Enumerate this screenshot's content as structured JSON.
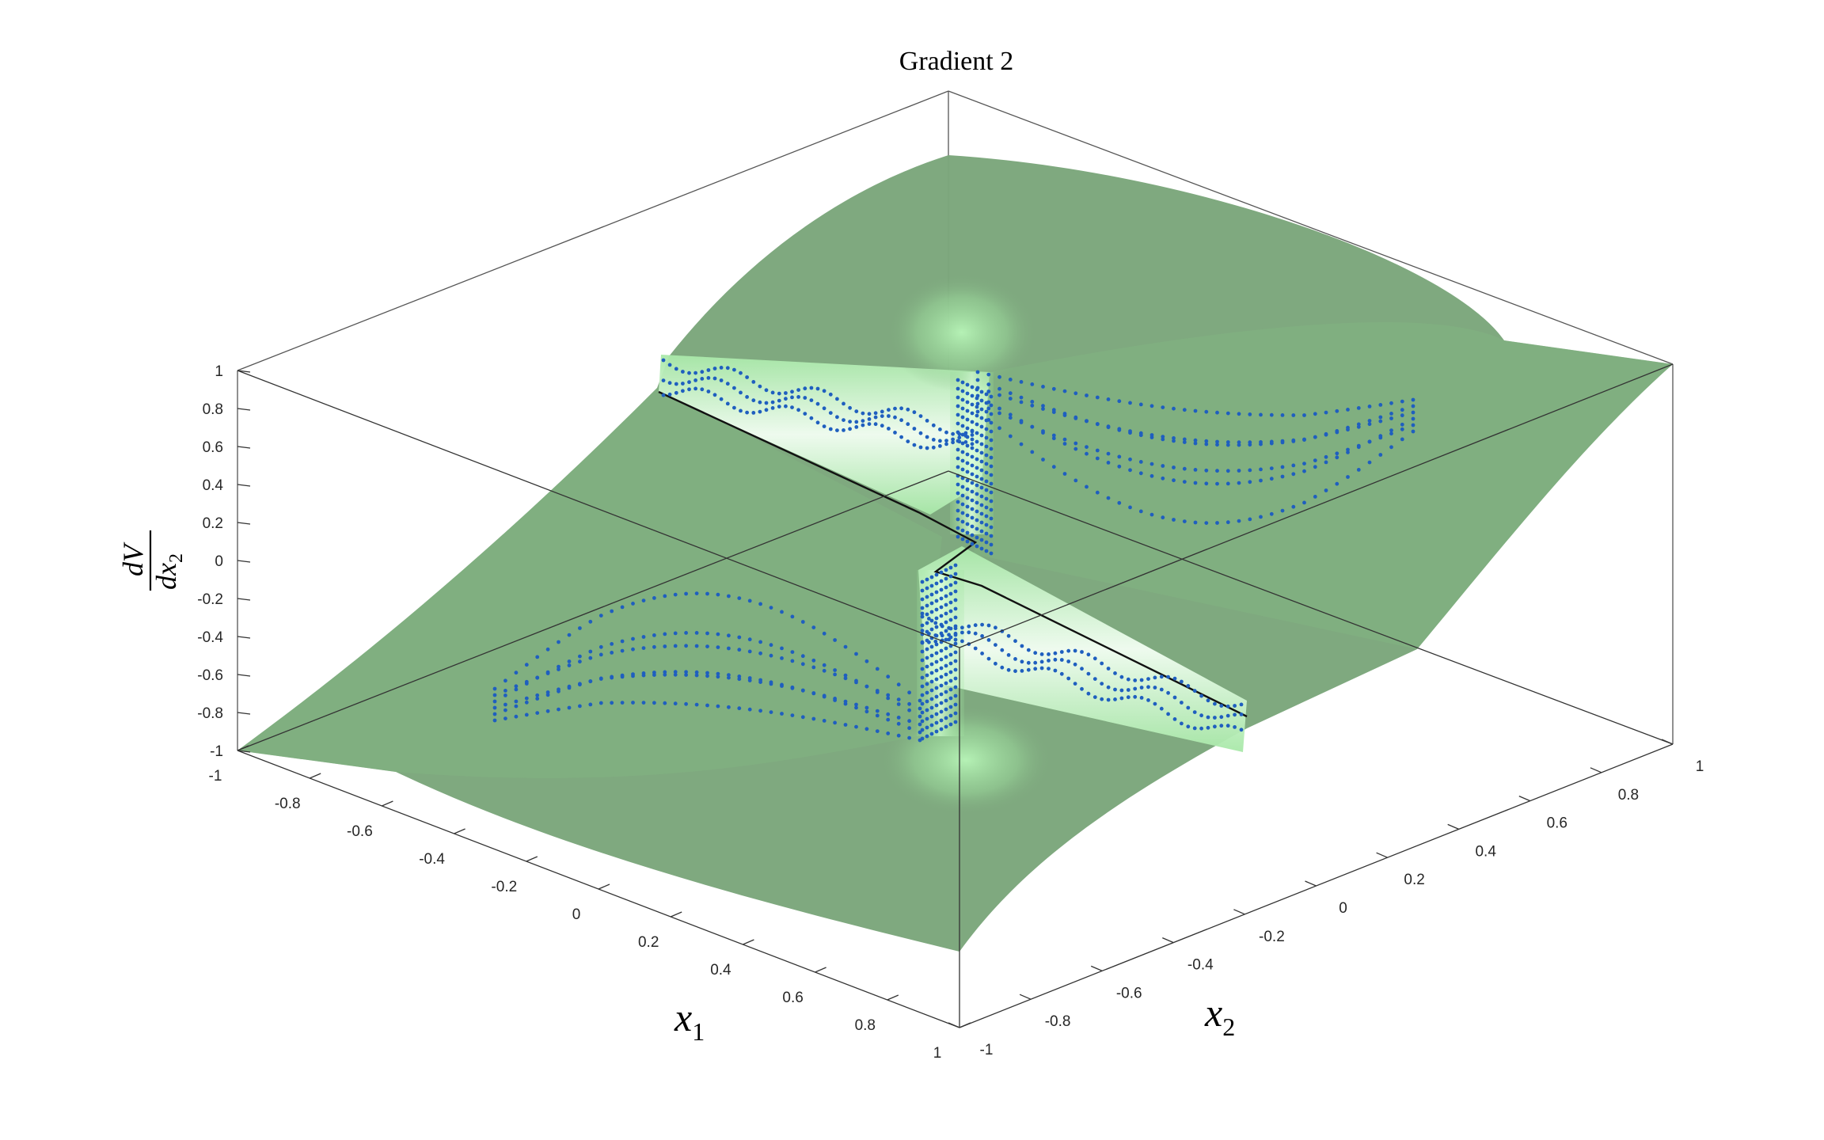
{
  "chart_data": {
    "type": "surface3d",
    "title": "Gradient 2",
    "xlabel": {
      "base": "x",
      "sub": "1"
    },
    "ylabel": {
      "base": "x",
      "sub": "2"
    },
    "zlabel": {
      "num": "dV",
      "den_base": "dx",
      "den_sub": "2"
    },
    "xlim": [
      -1,
      1
    ],
    "ylim": [
      -1,
      1
    ],
    "zlim": [
      -1,
      1
    ],
    "x_ticks": [
      "-1",
      "-0.8",
      "-0.6",
      "-0.4",
      "-0.2",
      "0",
      "0.2",
      "0.4",
      "0.6",
      "0.8",
      "1"
    ],
    "y_ticks": [
      "-1",
      "-0.8",
      "-0.6",
      "-0.4",
      "-0.2",
      "0",
      "0.2",
      "0.4",
      "0.6",
      "0.8",
      "1"
    ],
    "z_ticks": [
      "-1",
      "-0.8",
      "-0.6",
      "-0.4",
      "-0.2",
      "0",
      "0.2",
      "0.4",
      "0.6",
      "0.8",
      "1"
    ],
    "surface_color": "#7ba67b",
    "highlight_color": "#d8f5d8",
    "marker_color": "#1f5fbf",
    "grid": false,
    "box": true,
    "series": [
      {
        "type": "surface"
      },
      {
        "type": "scatter"
      },
      {
        "type": "discontinuity-line"
      }
    ]
  }
}
